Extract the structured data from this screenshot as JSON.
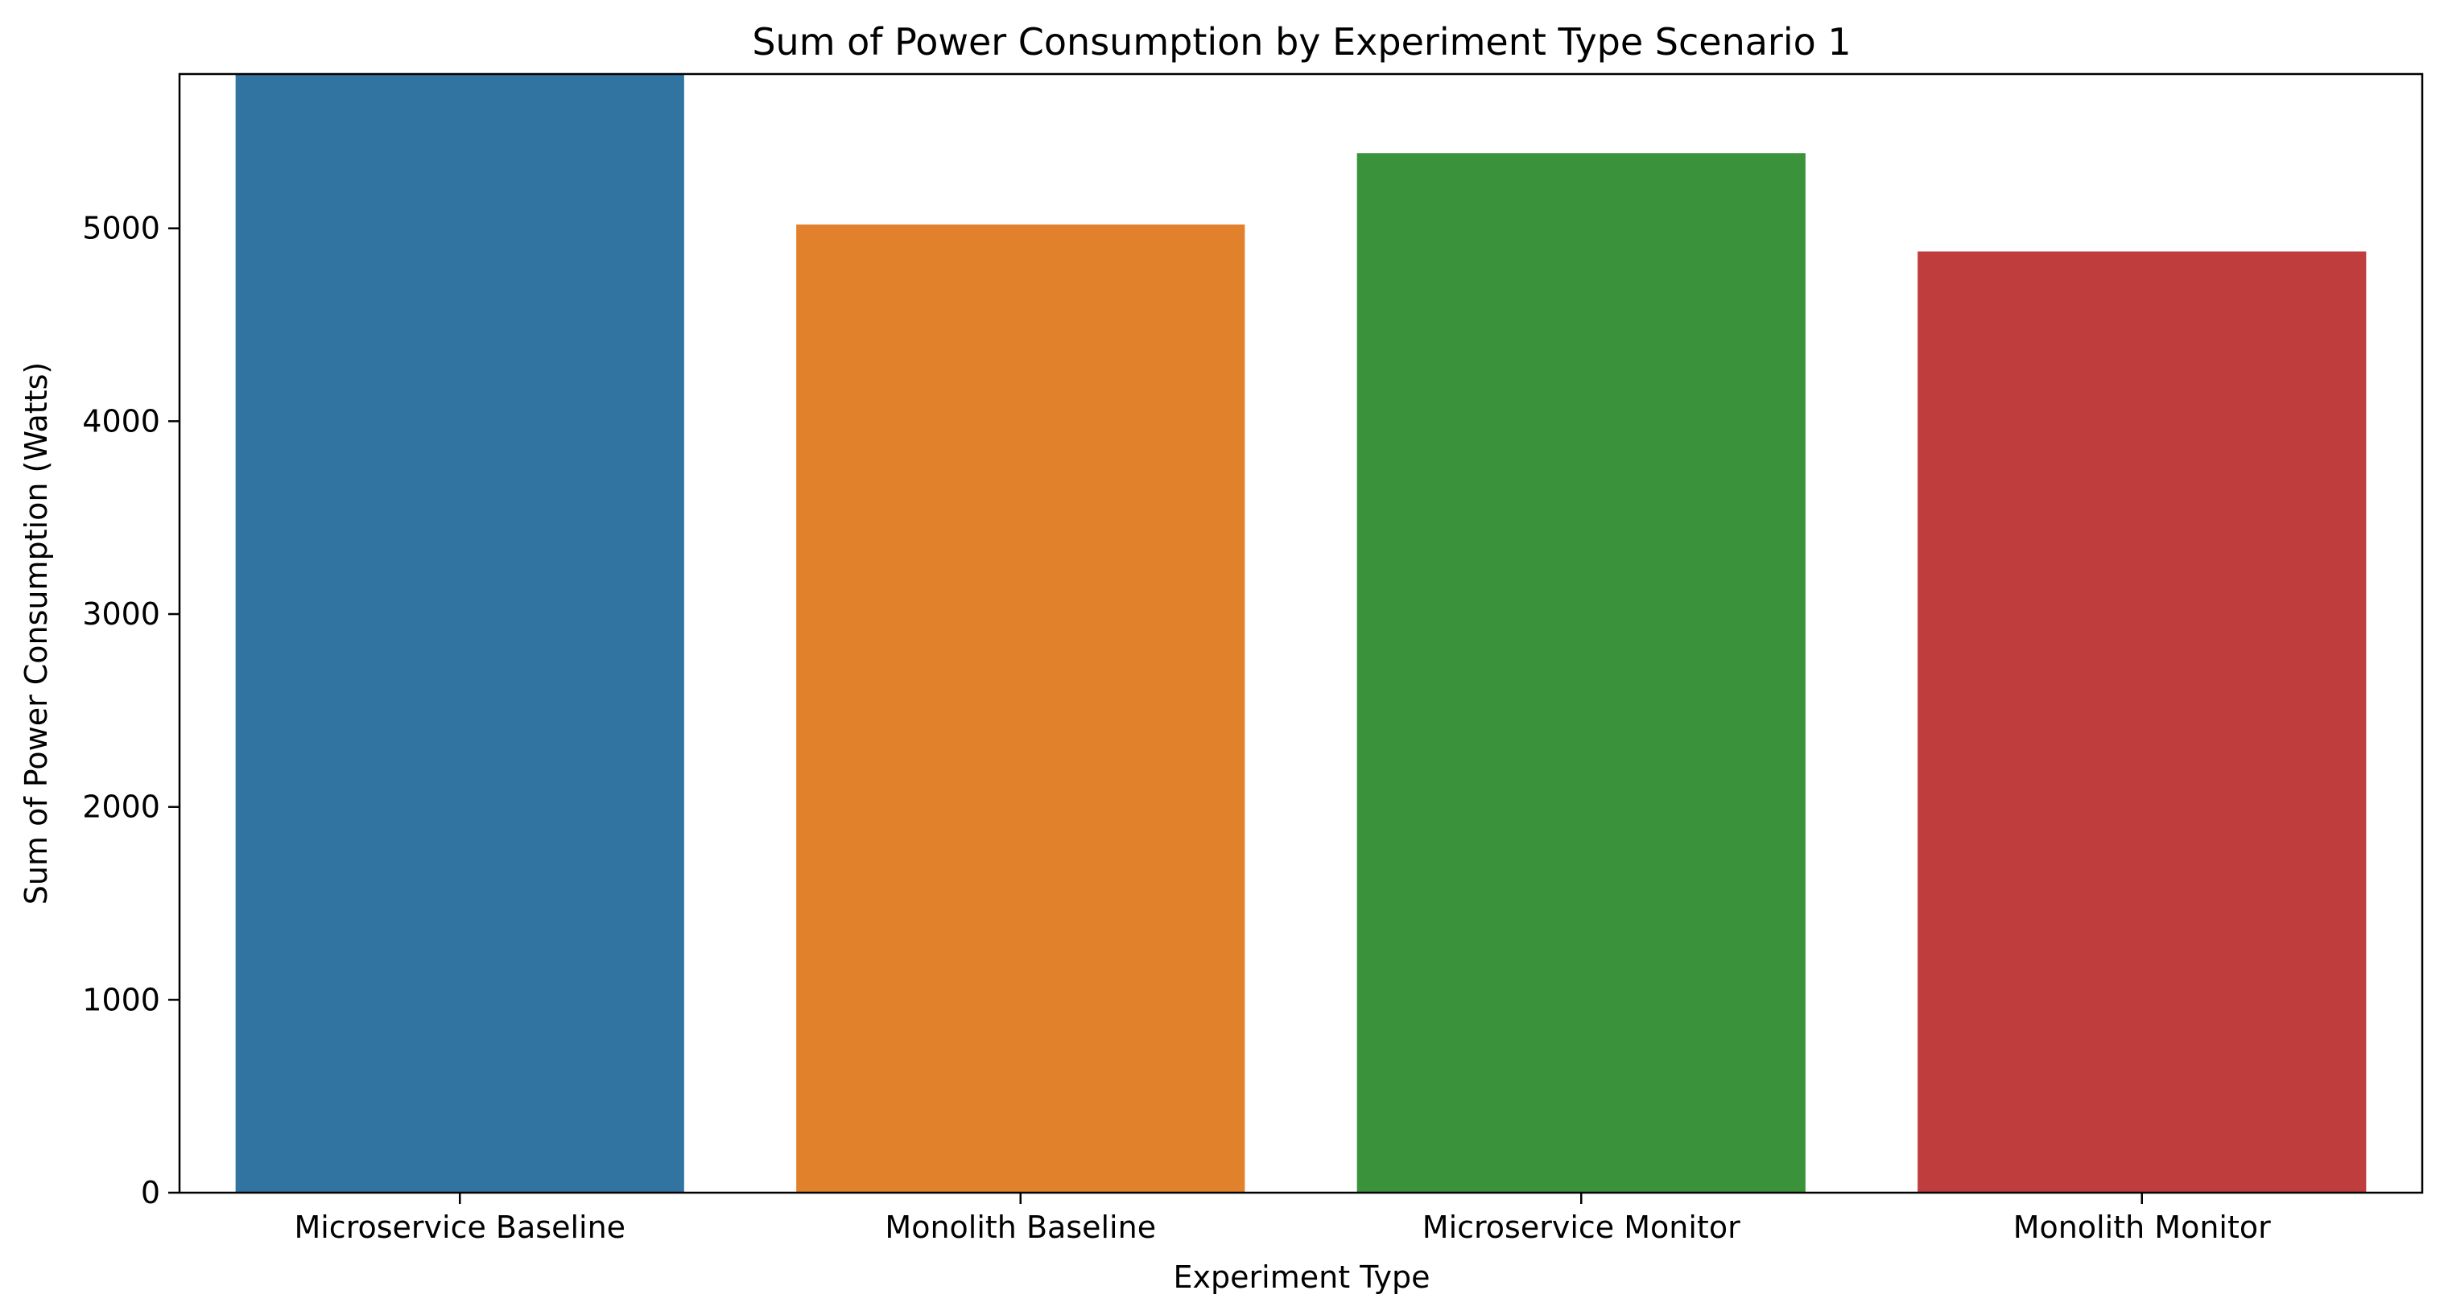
{
  "chart_data": {
    "type": "bar",
    "title": "Sum of Power Consumption by Experiment Type Scenario 1",
    "xlabel": "Experiment Type",
    "ylabel": "Sum of Power Consumption (Watts)",
    "categories": [
      "Microservice Baseline",
      "Monolith Baseline",
      "Microservice Monitor",
      "Monolith Monitor"
    ],
    "values": [
      5800,
      5020,
      5390,
      4880
    ],
    "colors": [
      "#3274a1",
      "#e1812c",
      "#3a923a",
      "#c03d3e"
    ],
    "ylim": [
      0,
      5800
    ],
    "yticks": [
      0,
      1000,
      2000,
      3000,
      4000,
      5000
    ],
    "grid": false,
    "legend": "none"
  }
}
